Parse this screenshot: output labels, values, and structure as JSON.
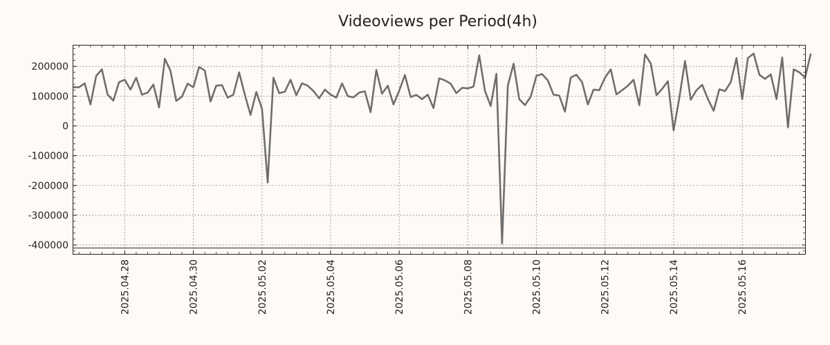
{
  "chart_data": {
    "type": "line",
    "title": "Videoviews per Period(4h)",
    "xlabel": "",
    "ylabel": "",
    "ylim": [
      -430000,
      270000
    ],
    "grid": true,
    "y_ticks": [
      200000,
      100000,
      0,
      -100000,
      -200000,
      -300000,
      -400000
    ],
    "y_tick_labels": [
      "200000",
      "100000",
      "0",
      "-100000",
      "-200000",
      "-300000",
      "-400000"
    ],
    "reference_line_value": -410000,
    "x_start": "2025.04.26 12:00",
    "x_end": "2025.05.17 20:00",
    "x_step_hours": 4,
    "x_ticks": [
      "2025.04.28",
      "2025.04.30",
      "2025.05.02",
      "2025.05.04",
      "2025.05.06",
      "2025.05.08",
      "2025.05.10",
      "2025.05.12",
      "2025.05.14",
      "2025.05.16"
    ],
    "minor_ticks_per_day": 3,
    "series": [
      {
        "name": "Videoviews",
        "color": "#6e6e6e",
        "values": [
          130000,
          130000,
          143000,
          72000,
          168000,
          190000,
          105000,
          85000,
          147000,
          155000,
          122000,
          162000,
          105000,
          112000,
          139000,
          62000,
          226000,
          185000,
          84000,
          98000,
          142000,
          130000,
          198000,
          186000,
          82000,
          135000,
          137000,
          95000,
          105000,
          180000,
          105000,
          37000,
          114000,
          58000,
          -190000,
          162000,
          110000,
          115000,
          155000,
          103000,
          143000,
          135000,
          117000,
          93000,
          122000,
          105000,
          95000,
          143000,
          100000,
          96000,
          112000,
          116000,
          46000,
          188000,
          108000,
          135000,
          72000,
          118000,
          171000,
          97000,
          104000,
          90000,
          105000,
          60000,
          160000,
          153000,
          142000,
          110000,
          128000,
          126000,
          132000,
          237000,
          118000,
          67000,
          175000,
          -395000,
          135000,
          209000,
          90000,
          70000,
          98000,
          168000,
          174000,
          153000,
          105000,
          102000,
          48000,
          162000,
          172000,
          147000,
          72000,
          122000,
          120000,
          162000,
          190000,
          106000,
          120000,
          135000,
          155000,
          70000,
          240000,
          210000,
          103000,
          125000,
          150000,
          -15000,
          95000,
          218000,
          88000,
          120000,
          138000,
          90000,
          51000,
          123000,
          117000,
          147000,
          228000,
          90000,
          228000,
          243000,
          172000,
          158000,
          173000,
          90000,
          230000,
          -5000,
          190000,
          180000,
          163000,
          243000
        ]
      }
    ]
  }
}
